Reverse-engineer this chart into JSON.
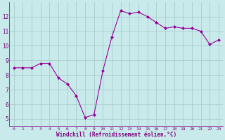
{
  "x": [
    0,
    1,
    2,
    3,
    4,
    5,
    6,
    7,
    8,
    9,
    10,
    11,
    12,
    13,
    14,
    15,
    16,
    17,
    18,
    19,
    20,
    21,
    22,
    23
  ],
  "y": [
    8.5,
    8.5,
    8.5,
    8.8,
    8.8,
    7.8,
    7.4,
    6.6,
    5.1,
    5.3,
    8.3,
    10.6,
    12.4,
    12.2,
    12.3,
    12.0,
    11.6,
    11.2,
    11.3,
    11.2,
    11.2,
    11.0,
    10.1,
    10.4
  ],
  "line_color": "#990099",
  "marker": "D",
  "marker_size": 2.0,
  "bg_color": "#c8eaea",
  "grid_color": "#aacccc",
  "xlabel": "Windchill (Refroidissement éolien,°C)",
  "xlabel_color": "#800080",
  "tick_color": "#800080",
  "label_color": "#800080",
  "ylim": [
    4.5,
    13.0
  ],
  "xlim": [
    -0.5,
    23.5
  ],
  "yticks": [
    5,
    6,
    7,
    8,
    9,
    10,
    11,
    12
  ],
  "xticks": [
    0,
    1,
    2,
    3,
    4,
    5,
    6,
    7,
    8,
    9,
    10,
    11,
    12,
    13,
    14,
    15,
    16,
    17,
    18,
    19,
    20,
    21,
    22,
    23
  ],
  "xtick_labels": [
    "0",
    "1",
    "2",
    "3",
    "4",
    "5",
    "6",
    "7",
    "8",
    "9",
    "10",
    "11",
    "12",
    "13",
    "14",
    "15",
    "16",
    "17",
    "18",
    "19",
    "20",
    "21",
    "22",
    "23"
  ]
}
